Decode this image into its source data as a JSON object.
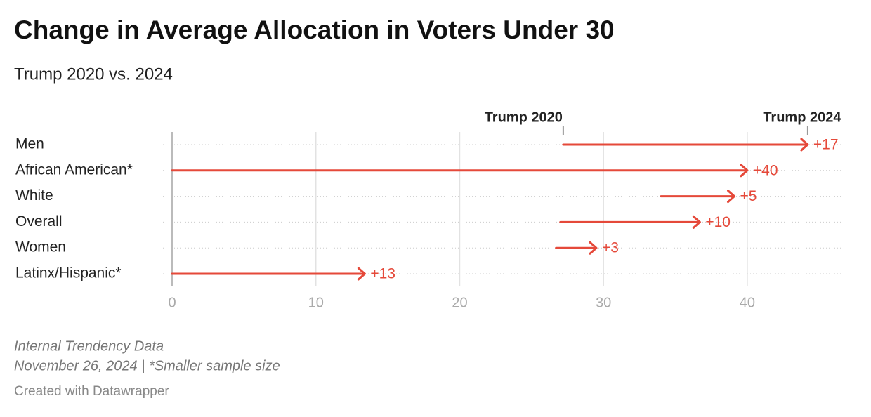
{
  "chart_data": {
    "type": "arrow",
    "title": "Change in Average Allocation in Voters Under 30",
    "subtitle": "Trump 2020 vs. 2024",
    "categories": [
      "Men",
      "African American*",
      "White",
      "Overall",
      "Women",
      "Latinx/Hispanic*"
    ],
    "series": [
      {
        "name": "Trump 2020",
        "values": [
          27.2,
          0,
          34,
          27,
          26.7,
          0
        ]
      },
      {
        "name": "Trump 2024",
        "values": [
          44.2,
          40,
          39.1,
          36.7,
          29.5,
          13.4
        ]
      }
    ],
    "change_labels": [
      "+17",
      "+40",
      "+5",
      "+10",
      "+3",
      "+13"
    ],
    "color": "#e5493a",
    "xlim": [
      0,
      46.5
    ],
    "xticks": [
      0,
      10,
      20,
      30,
      40
    ],
    "grid": true,
    "notes": [
      "Internal Trendency Data",
      "November 26, 2024 | *Smaller sample size"
    ],
    "credit": "Created with Datawrapper"
  }
}
